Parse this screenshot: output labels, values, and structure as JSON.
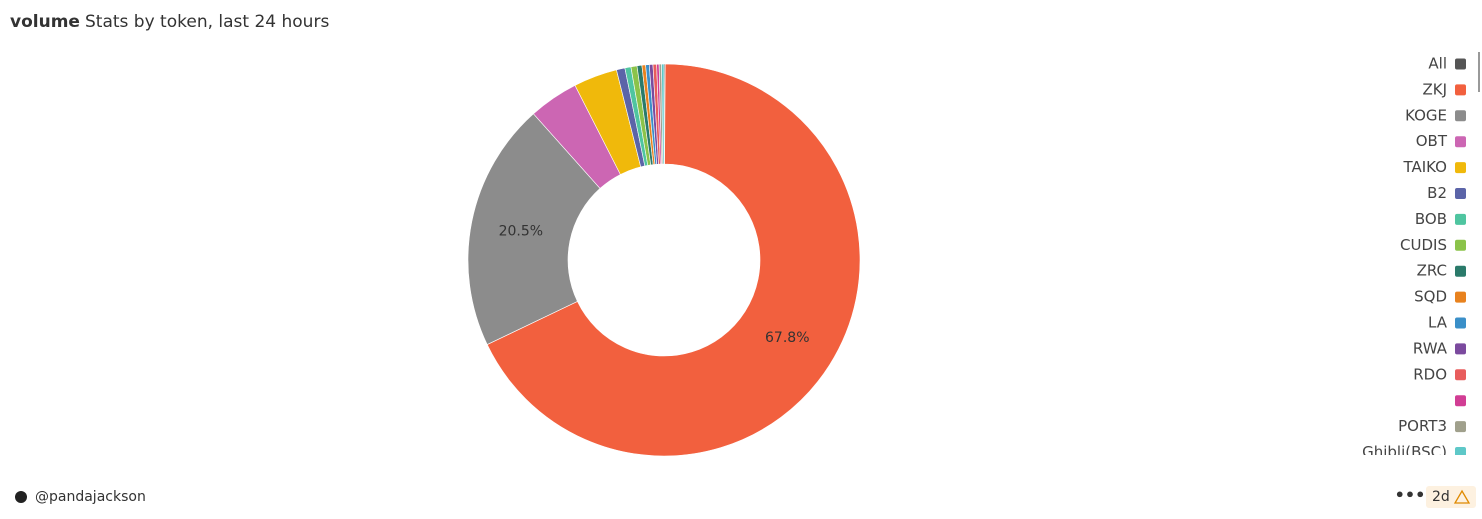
{
  "chart_data": {
    "type": "donut",
    "title": "volume",
    "subtitle": "Stats by token, last 24 hours",
    "categories": [
      "All",
      "ZKJ",
      "KOGE",
      "OBT",
      "TAIKO",
      "B2",
      "BOB",
      "CUDIS",
      "ZRC",
      "SQD",
      "LA",
      "RWA",
      "RDO",
      null,
      "PORT3",
      "Ghibli(BSC)"
    ],
    "values": [
      0.1,
      67.8,
      20.5,
      4.1,
      3.6,
      0.7,
      0.5,
      0.5,
      0.4,
      0.3,
      0.3,
      0.3,
      0.3,
      0.2,
      0.2,
      0.2
    ],
    "value_labels": [
      null,
      "67.8%",
      "20.5%",
      null,
      null,
      null,
      null,
      null,
      null,
      null,
      null,
      null,
      null,
      null,
      null,
      null
    ],
    "colors": [
      "#555555",
      "#f2603e",
      "#8c8c8c",
      "#cc66b3",
      "#f0b90b",
      "#5b64a8",
      "#4fc5a0",
      "#8bc34a",
      "#2a7a6a",
      "#e8821e",
      "#3a8fc8",
      "#7b4a9e",
      "#e85d5d",
      "#d13d94",
      "#a0a08c",
      "#5ec8c8"
    ],
    "legend": "right"
  },
  "footer": {
    "author": "@pandajackson",
    "age": "2d"
  }
}
